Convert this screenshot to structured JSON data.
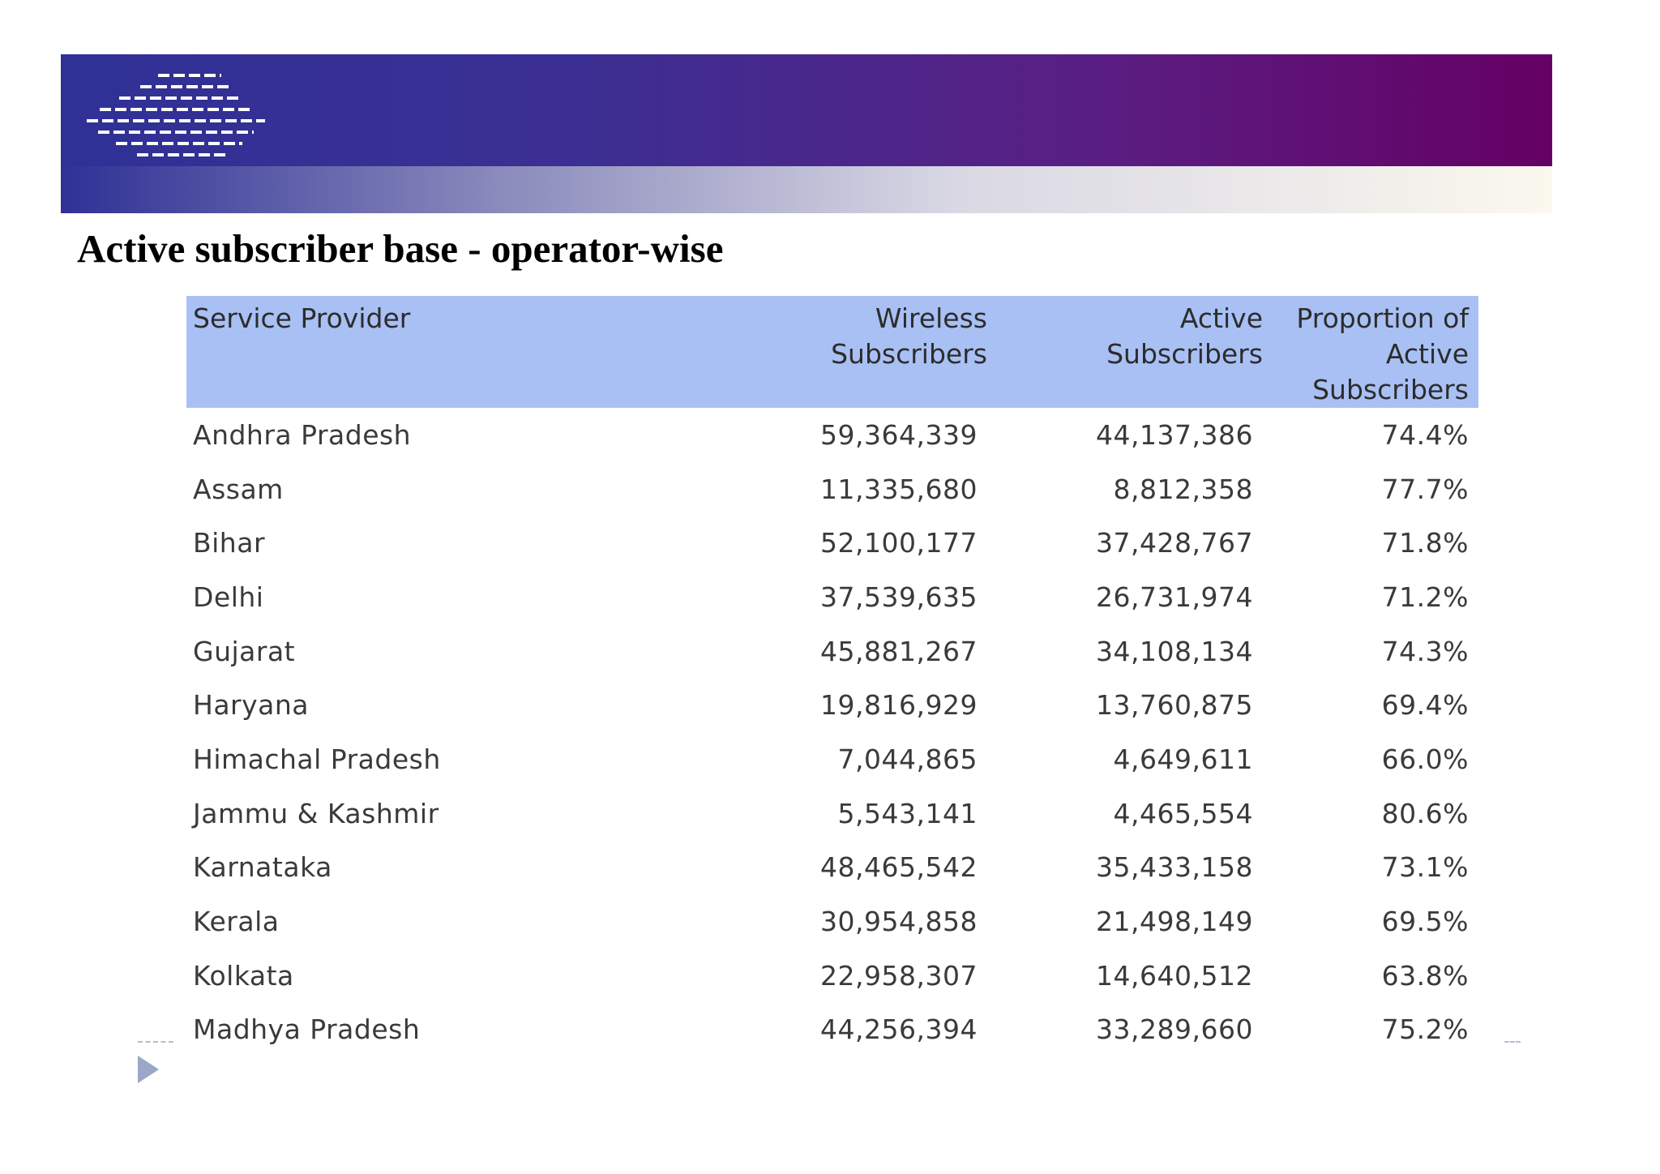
{
  "header": {
    "logo_icon": "striped-globe-logo-icon",
    "colors": {
      "band_left": "#2f3196",
      "band_right": "#650064",
      "table_header": "#a9c0f4"
    }
  },
  "slide": {
    "title": "Active subscriber base - operator-wise"
  },
  "table": {
    "columns": [
      {
        "line1": "Service Provider",
        "line2": "",
        "line3": ""
      },
      {
        "line1": "Wireless",
        "line2": "Subscribers",
        "line3": ""
      },
      {
        "line1": "Active",
        "line2": "Subscribers",
        "line3": ""
      },
      {
        "line1": "Proportion of",
        "line2": "Active",
        "line3": "Subscribers"
      }
    ],
    "rows": [
      [
        "Andhra Pradesh",
        "59,364,339",
        "44,137,386",
        "74.4%"
      ],
      [
        "Assam",
        "11,335,680",
        "8,812,358",
        "77.7%"
      ],
      [
        "Bihar",
        "52,100,177",
        "37,428,767",
        "71.8%"
      ],
      [
        "Delhi",
        "37,539,635",
        "26,731,974",
        "71.2%"
      ],
      [
        "Gujarat",
        "45,881,267",
        "34,108,134",
        "74.3%"
      ],
      [
        "Haryana",
        "19,816,929",
        "13,760,875",
        "69.4%"
      ],
      [
        "Himachal Pradesh",
        "7,044,865",
        "4,649,611",
        "66.0%"
      ],
      [
        "Jammu & Kashmir",
        "5,543,141",
        "4,465,554",
        "80.6%"
      ],
      [
        "Karnataka",
        "48,465,542",
        "35,433,158",
        "73.1%"
      ],
      [
        "Kerala",
        "30,954,858",
        "21,498,149",
        "69.5%"
      ],
      [
        "Kolkata",
        "22,958,307",
        "14,640,512",
        "63.8%"
      ],
      [
        "Madhya Pradesh",
        "44,256,394",
        "33,289,660",
        "75.2%"
      ]
    ]
  },
  "footer": {
    "bullet_icon": "triangle-bullet-icon"
  }
}
